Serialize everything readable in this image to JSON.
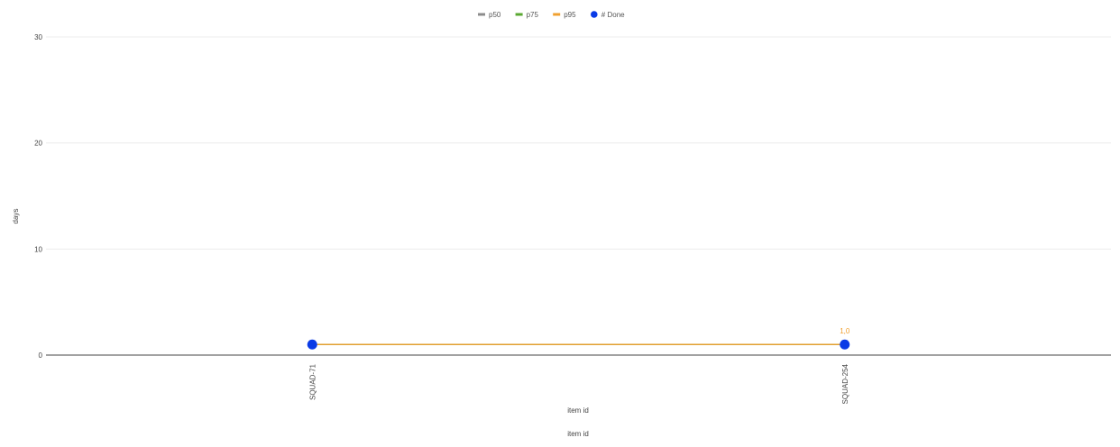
{
  "chart_data": {
    "type": "line",
    "title": "",
    "xlabel": "item id",
    "xlabel_secondary": "item id",
    "ylabel": "days",
    "ylim": [
      0,
      30
    ],
    "yticks": [
      0,
      10,
      20,
      30
    ],
    "grid": true,
    "legend_position": "top-center",
    "categories": [
      "SQUAD-71",
      "SQUAD-254"
    ],
    "series": [
      {
        "name": "p50",
        "kind": "line",
        "color": "#8c8c8c",
        "values": [
          1.0,
          1.0
        ]
      },
      {
        "name": "p75",
        "kind": "line",
        "color": "#5aa832",
        "values": [
          1.0,
          1.0
        ]
      },
      {
        "name": "p95",
        "kind": "line",
        "color": "#f0a030",
        "values": [
          1.0,
          1.0
        ]
      },
      {
        "name": "# Done",
        "kind": "scatter",
        "color": "#0b3be6",
        "values": [
          1.0,
          1.0
        ]
      }
    ],
    "annotations": [
      {
        "category": "SQUAD-254",
        "value": 1.0,
        "text": "1,0",
        "color": "#f0a030"
      }
    ]
  }
}
